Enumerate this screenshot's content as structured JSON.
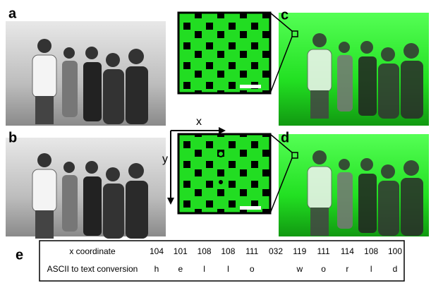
{
  "panels": {
    "a": "a",
    "b": "b",
    "c": "c",
    "d": "d",
    "e": "e"
  },
  "axes": {
    "x": "x",
    "y": "y"
  },
  "table": {
    "rows": [
      {
        "label": "x coordinate",
        "cells": [
          "104",
          "101",
          "108",
          "108",
          "111",
          "032",
          "119",
          "111",
          "114",
          "108",
          "100"
        ]
      },
      {
        "label": "ASCII to text conversion",
        "cells": [
          "h",
          "e",
          "l",
          "l",
          "o",
          null,
          "w",
          "o",
          "r",
          "l",
          "d"
        ]
      }
    ]
  }
}
